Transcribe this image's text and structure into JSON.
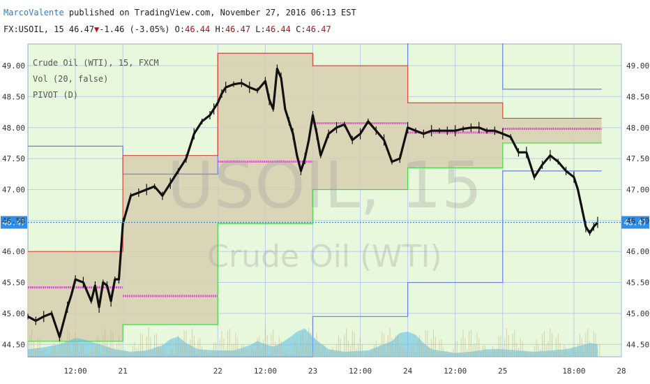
{
  "header": {
    "author": "MarcoValente",
    "published_text": " published on TradingView.com, November 27, 2016 06:13 EST",
    "symbol": "FX:USOIL, 15 ",
    "last": "46.47",
    "arrow": "▼",
    "change": "-1.46 (-3.05%)",
    "o_label": " O:",
    "o": "46.44",
    "h_label": " H:",
    "h": "46.47",
    "l_label": " L:",
    "l": "46.44",
    "c_label": " C:",
    "c": "46.47"
  },
  "colors": {
    "background": "#e8f8dc",
    "grid": "#a8bbe8",
    "price_line": "#2f8fe8",
    "candle": "#111111",
    "pivot_r1": "#d94a3a",
    "pivot_s1": "#4ad44a",
    "pivot_r2s2": "#6a7fe0",
    "pivot_p": "#e050d0",
    "pivot_fill": "#d8cfb0",
    "volume_area": "#5bbbe6"
  },
  "chart_data": {
    "type": "line",
    "title": "",
    "watermark_symbol": "USOIL, 15",
    "watermark_name": "Crude Oil (WTI)",
    "legend": [
      "Crude Oil (WTI), 15, FXCM",
      "Vol (20, false)",
      "PIVOT (D)"
    ],
    "ylim": [
      44.3,
      49.35
    ],
    "y_ticks": [
      "49.00",
      "48.50",
      "48.00",
      "47.50",
      "47.00",
      "46.50",
      "46.00",
      "45.50",
      "45.00",
      "44.50"
    ],
    "y_tick_values": [
      49.0,
      48.5,
      48.0,
      47.5,
      47.0,
      46.5,
      46.0,
      45.5,
      45.0,
      44.5
    ],
    "x_ticks": [
      "12:00",
      "21",
      "22",
      "12:00",
      "23",
      "12:00",
      "24",
      "12:00",
      "25",
      "18:00",
      "28"
    ],
    "x_tick_times": [
      12,
      24,
      48,
      60,
      72,
      84,
      96,
      108,
      120,
      138,
      150
    ],
    "last_price": 46.47,
    "last_price_label": "46.47",
    "series": [
      {
        "name": "Crude Oil (WTI), 15, FXCM",
        "points": [
          [
            0,
            44.95
          ],
          [
            2,
            44.88
          ],
          [
            4,
            44.95
          ],
          [
            6,
            45.0
          ],
          [
            8,
            44.62
          ],
          [
            10,
            45.1
          ],
          [
            11,
            45.3
          ],
          [
            12,
            45.55
          ],
          [
            14,
            45.5
          ],
          [
            16,
            45.2
          ],
          [
            17,
            45.45
          ],
          [
            18,
            45.1
          ],
          [
            19,
            45.5
          ],
          [
            20,
            45.45
          ],
          [
            21,
            45.2
          ],
          [
            22,
            45.55
          ],
          [
            23,
            45.55
          ],
          [
            24,
            46.45
          ],
          [
            26,
            46.9
          ],
          [
            28,
            46.95
          ],
          [
            30,
            47.0
          ],
          [
            32,
            47.05
          ],
          [
            34,
            46.9
          ],
          [
            36,
            47.1
          ],
          [
            38,
            47.3
          ],
          [
            40,
            47.5
          ],
          [
            42,
            47.9
          ],
          [
            44,
            48.1
          ],
          [
            46,
            48.2
          ],
          [
            47,
            48.3
          ],
          [
            48,
            48.4
          ],
          [
            49,
            48.55
          ],
          [
            50,
            48.65
          ],
          [
            52,
            48.7
          ],
          [
            54,
            48.72
          ],
          [
            56,
            48.65
          ],
          [
            58,
            48.6
          ],
          [
            60,
            48.75
          ],
          [
            61,
            48.45
          ],
          [
            62,
            48.3
          ],
          [
            63,
            48.95
          ],
          [
            64,
            48.8
          ],
          [
            65,
            48.3
          ],
          [
            66,
            48.1
          ],
          [
            67,
            47.9
          ],
          [
            68,
            47.55
          ],
          [
            69,
            47.3
          ],
          [
            70,
            47.5
          ],
          [
            71,
            47.8
          ],
          [
            72,
            48.2
          ],
          [
            73,
            47.9
          ],
          [
            74,
            47.55
          ],
          [
            76,
            47.9
          ],
          [
            78,
            48.0
          ],
          [
            80,
            48.05
          ],
          [
            82,
            47.8
          ],
          [
            84,
            47.9
          ],
          [
            86,
            48.1
          ],
          [
            88,
            47.95
          ],
          [
            90,
            47.8
          ],
          [
            92,
            47.45
          ],
          [
            94,
            47.5
          ],
          [
            96,
            48.0
          ],
          [
            98,
            47.95
          ],
          [
            100,
            47.9
          ],
          [
            102,
            47.95
          ],
          [
            104,
            47.95
          ],
          [
            106,
            47.95
          ],
          [
            108,
            47.95
          ],
          [
            110,
            47.98
          ],
          [
            112,
            48.0
          ],
          [
            114,
            48.0
          ],
          [
            116,
            47.95
          ],
          [
            118,
            47.95
          ],
          [
            120,
            47.9
          ],
          [
            122,
            47.85
          ],
          [
            124,
            47.6
          ],
          [
            126,
            47.6
          ],
          [
            128,
            47.2
          ],
          [
            130,
            47.4
          ],
          [
            132,
            47.55
          ],
          [
            134,
            47.45
          ],
          [
            136,
            47.3
          ],
          [
            138,
            47.2
          ],
          [
            139,
            47.0
          ],
          [
            140,
            46.7
          ],
          [
            141,
            46.4
          ],
          [
            142,
            46.3
          ],
          [
            143,
            46.4
          ],
          [
            144,
            46.47
          ]
        ]
      }
    ],
    "pivot_days": [
      {
        "start": 0,
        "end": 24,
        "r1": 46.0,
        "p": 45.42,
        "s1": 44.55,
        "r2": 47.7,
        "s2": 44.3
      },
      {
        "start": 24,
        "end": 48,
        "r1": 47.55,
        "p": 45.28,
        "s1": 44.82,
        "r2": 47.25,
        "s2": 44.3
      },
      {
        "start": 48,
        "end": 72,
        "r1": 49.2,
        "p": 47.45,
        "s1": 46.45,
        "r2": 49.2,
        "s2": 44.3
      },
      {
        "start": 72,
        "end": 96,
        "r1": 49.0,
        "p": 48.07,
        "s1": 47.0,
        "r2": 49.0,
        "s2": 44.95
      },
      {
        "start": 96,
        "end": 120,
        "r1": 48.4,
        "p": 47.92,
        "s1": 47.35,
        "r2": 49.45,
        "s2": 45.5
      },
      {
        "start": 120,
        "end": 145,
        "r1": 48.15,
        "p": 47.98,
        "s1": 47.75,
        "r2": 48.62,
        "s2": 47.3
      }
    ],
    "volume_area": [
      [
        0,
        0.12
      ],
      [
        4,
        0.15
      ],
      [
        8,
        0.2
      ],
      [
        12,
        0.3
      ],
      [
        14,
        0.28
      ],
      [
        18,
        0.2
      ],
      [
        22,
        0.12
      ],
      [
        26,
        0.08
      ],
      [
        30,
        0.1
      ],
      [
        34,
        0.18
      ],
      [
        36,
        0.28
      ],
      [
        38,
        0.32
      ],
      [
        40,
        0.22
      ],
      [
        43,
        0.12
      ],
      [
        48,
        0.1
      ],
      [
        52,
        0.1
      ],
      [
        56,
        0.18
      ],
      [
        58,
        0.25
      ],
      [
        60,
        0.2
      ],
      [
        62,
        0.16
      ],
      [
        64,
        0.22
      ],
      [
        66,
        0.3
      ],
      [
        68,
        0.4
      ],
      [
        70,
        0.45
      ],
      [
        71,
        0.38
      ],
      [
        73,
        0.26
      ],
      [
        76,
        0.12
      ],
      [
        80,
        0.08
      ],
      [
        86,
        0.1
      ],
      [
        92,
        0.25
      ],
      [
        94,
        0.38
      ],
      [
        96,
        0.4
      ],
      [
        98,
        0.35
      ],
      [
        100,
        0.22
      ],
      [
        102,
        0.12
      ],
      [
        108,
        0.06
      ],
      [
        112,
        0.08
      ],
      [
        116,
        0.12
      ],
      [
        120,
        0.12
      ],
      [
        124,
        0.1
      ],
      [
        128,
        0.08
      ],
      [
        132,
        0.1
      ],
      [
        136,
        0.12
      ],
      [
        140,
        0.18
      ],
      [
        142,
        0.22
      ],
      [
        144,
        0.2
      ]
    ]
  }
}
